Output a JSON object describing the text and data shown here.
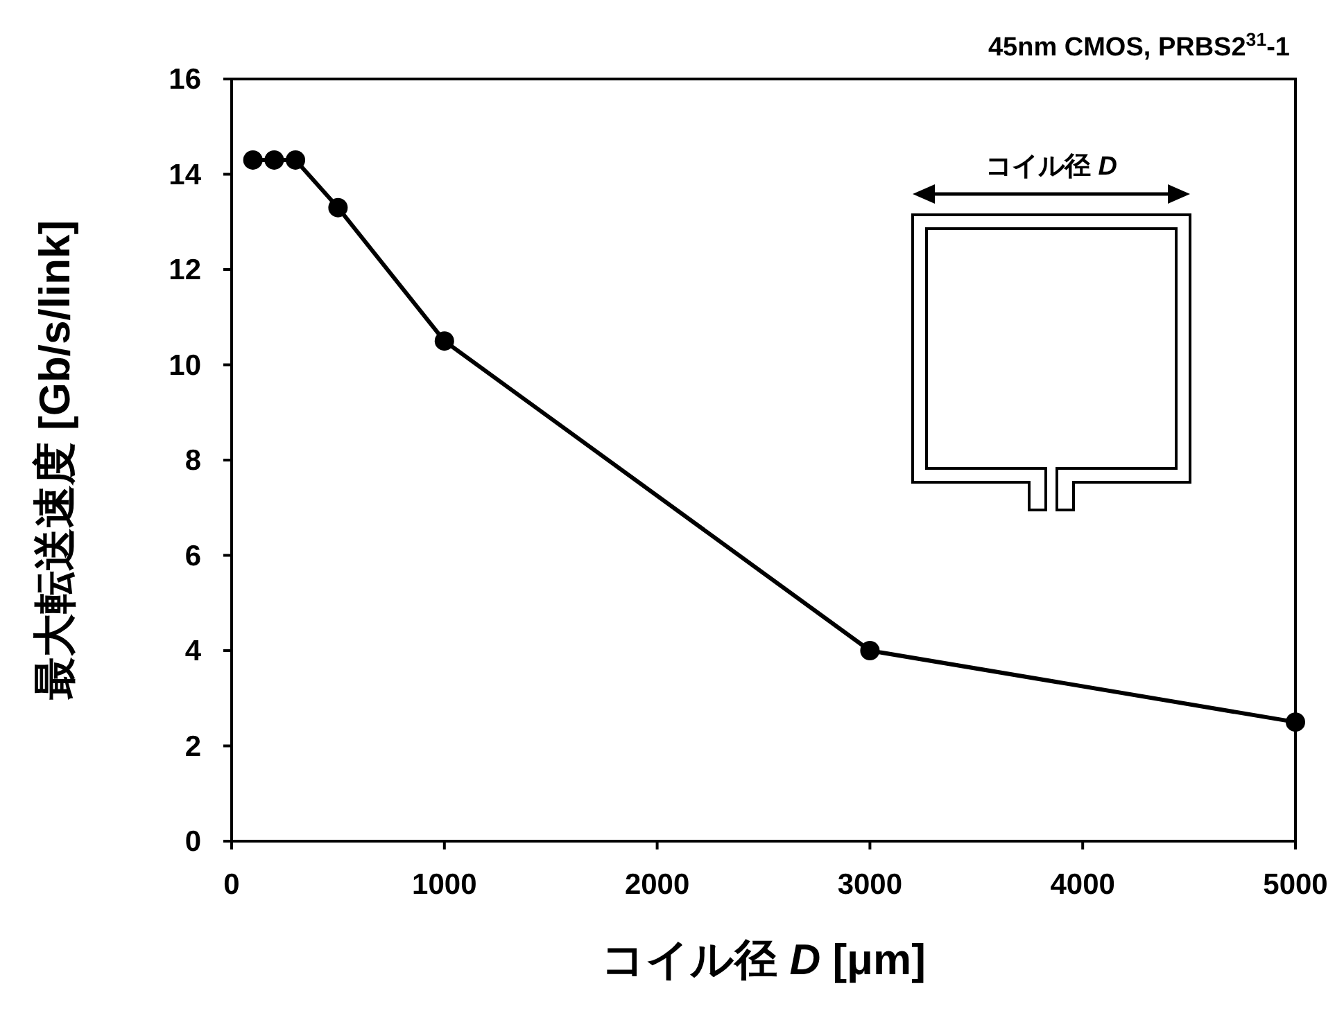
{
  "chart_data": {
    "type": "line",
    "xlabel": "コイル径 *D* [μm]",
    "ylabel": "最大転送速度 [Gb/s/link]",
    "annotations": [
      "45nm CMOS, PRBS2$^{31}$-1",
      "コイル径 *D*"
    ],
    "x": [
      100,
      200,
      300,
      500,
      1000,
      3000,
      5000
    ],
    "series": [
      {
        "color": "#000000",
        "values": [
          14.3,
          14.3,
          14.3,
          13.3,
          10.5,
          4.0,
          2.5
        ]
      }
    ],
    "xlim": [
      0,
      5000
    ],
    "xticks": [
      0,
      1000,
      2000,
      3000,
      4000,
      5000
    ],
    "ylim": [
      0,
      16
    ],
    "yticks": [
      0,
      2,
      4,
      6,
      8,
      10,
      12,
      14,
      16
    ],
    "marker": "circle",
    "line_style": "solid"
  }
}
